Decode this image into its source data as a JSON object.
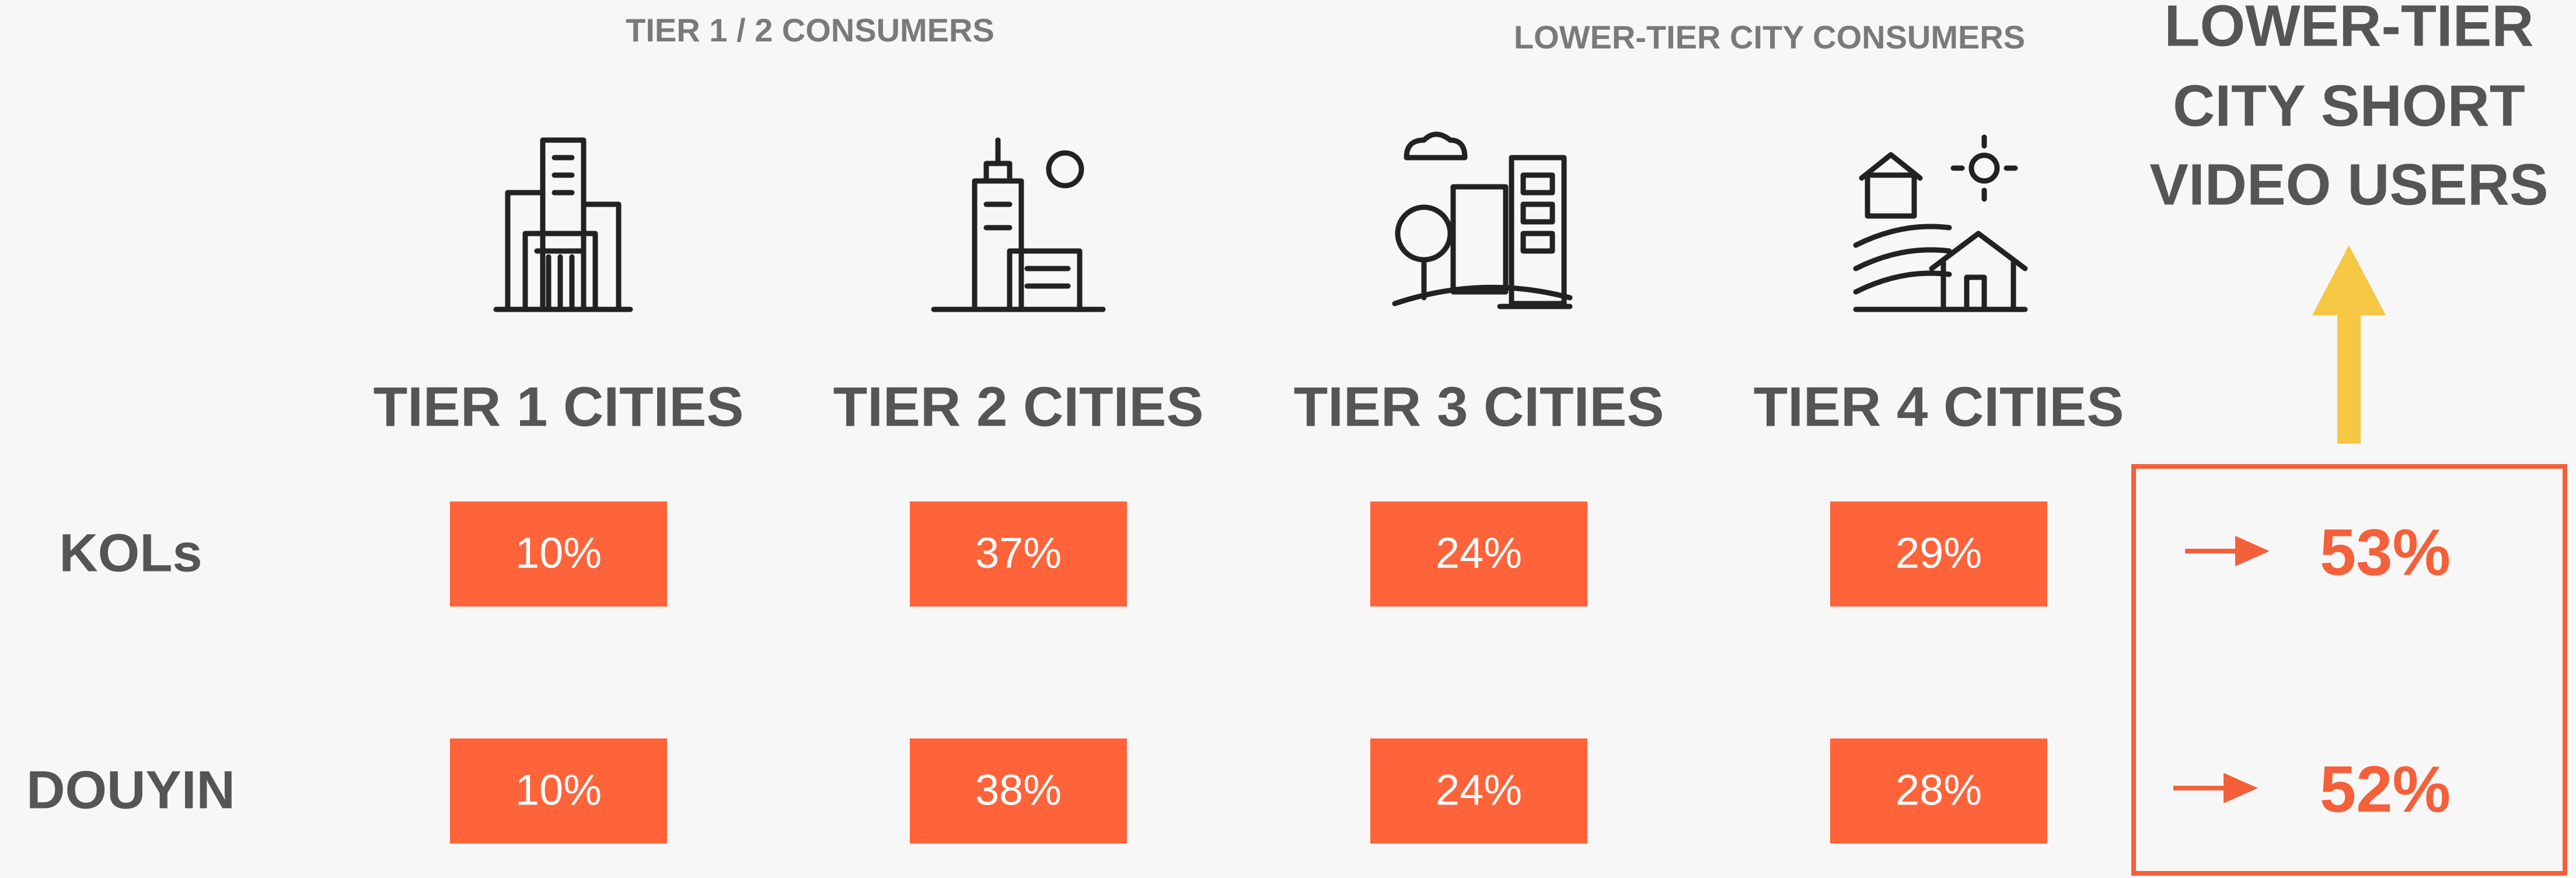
{
  "headers": [
    "TIER 1 / 2 CONSUMERS",
    "LOWER-TIER CITY CONSUMERS"
  ],
  "highlight": {
    "title": [
      "LOWER-TIER",
      "CITY SHORT",
      "VIDEO USERS"
    ]
  },
  "columns": [
    "TIER 1 CITIES",
    "TIER 2 CITIES",
    "TIER 3 CITIES",
    "TIER 4 CITIES"
  ],
  "rows": [
    {
      "label": "KOLs",
      "cells": [
        "10%",
        "37%",
        "24%",
        "29%"
      ],
      "total": "53%"
    },
    {
      "label": "DOUYIN",
      "cells": [
        "10%",
        "38%",
        "24%",
        "28%"
      ],
      "total": "52%"
    }
  ]
}
